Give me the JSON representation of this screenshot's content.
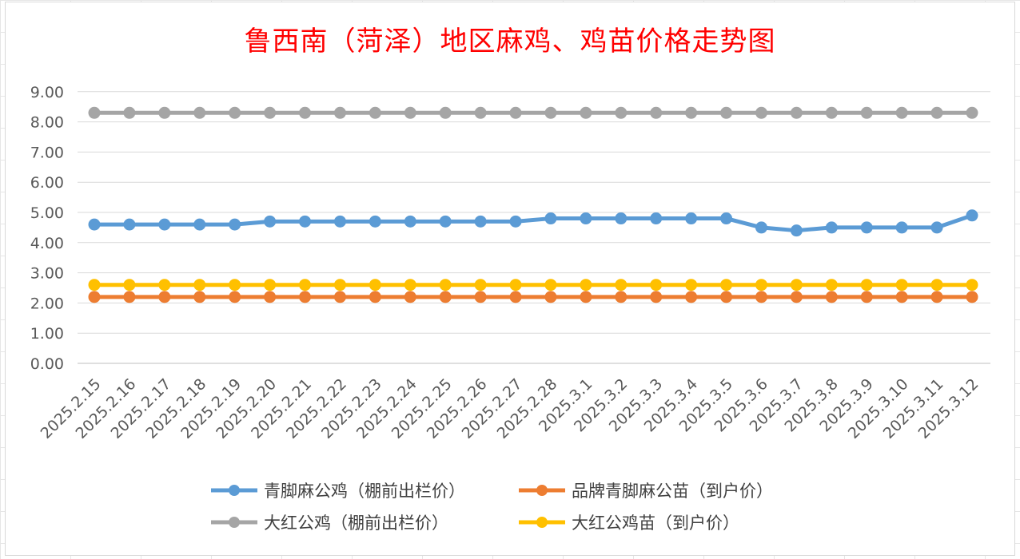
{
  "chart_data": {
    "type": "line",
    "title": "鲁西南（菏泽）地区麻鸡、鸡苗价格走势图",
    "xlabel": "",
    "ylabel": "",
    "ylim": [
      0,
      9
    ],
    "yticks": [
      "0.00",
      "1.00",
      "2.00",
      "3.00",
      "4.00",
      "5.00",
      "6.00",
      "7.00",
      "8.00",
      "9.00"
    ],
    "grid": true,
    "legend_position": "bottom",
    "categories": [
      "2025.2.15",
      "2025.2.16",
      "2025.2.17",
      "2025.2.18",
      "2025.2.19",
      "2025.2.20",
      "2025.2.21",
      "2025.2.22",
      "2025.2.23",
      "2025.2.24",
      "2025.2.25",
      "2025.2.26",
      "2025.2.27",
      "2025.2.28",
      "2025.3.1",
      "2025.3.2",
      "2025.3.3",
      "2025.3.4",
      "2025.3.5",
      "2025.3.6",
      "2025.3.7",
      "2025.3.8",
      "2025.3.9",
      "2025.3.10",
      "2025.3.11",
      "2025.3.12"
    ],
    "series": [
      {
        "name": "青脚麻公鸡（棚前出栏价）",
        "color": "#5b9bd5",
        "values": [
          4.6,
          4.6,
          4.6,
          4.6,
          4.6,
          4.7,
          4.7,
          4.7,
          4.7,
          4.7,
          4.7,
          4.7,
          4.7,
          4.8,
          4.8,
          4.8,
          4.8,
          4.8,
          4.8,
          4.5,
          4.4,
          4.5,
          4.5,
          4.5,
          4.5,
          4.9
        ]
      },
      {
        "name": "品牌青脚麻公苗（到户价）",
        "color": "#ed7d31",
        "values": [
          2.2,
          2.2,
          2.2,
          2.2,
          2.2,
          2.2,
          2.2,
          2.2,
          2.2,
          2.2,
          2.2,
          2.2,
          2.2,
          2.2,
          2.2,
          2.2,
          2.2,
          2.2,
          2.2,
          2.2,
          2.2,
          2.2,
          2.2,
          2.2,
          2.2,
          2.2
        ]
      },
      {
        "name": "大红公鸡（棚前出栏价）",
        "color": "#a5a5a5",
        "values": [
          8.3,
          8.3,
          8.3,
          8.3,
          8.3,
          8.3,
          8.3,
          8.3,
          8.3,
          8.3,
          8.3,
          8.3,
          8.3,
          8.3,
          8.3,
          8.3,
          8.3,
          8.3,
          8.3,
          8.3,
          8.3,
          8.3,
          8.3,
          8.3,
          8.3,
          8.3
        ]
      },
      {
        "name": "大红公鸡苗（到户价）",
        "color": "#ffc000",
        "values": [
          2.6,
          2.6,
          2.6,
          2.6,
          2.6,
          2.6,
          2.6,
          2.6,
          2.6,
          2.6,
          2.6,
          2.6,
          2.6,
          2.6,
          2.6,
          2.6,
          2.6,
          2.6,
          2.6,
          2.6,
          2.6,
          2.6,
          2.6,
          2.6,
          2.6,
          2.6
        ]
      }
    ]
  }
}
